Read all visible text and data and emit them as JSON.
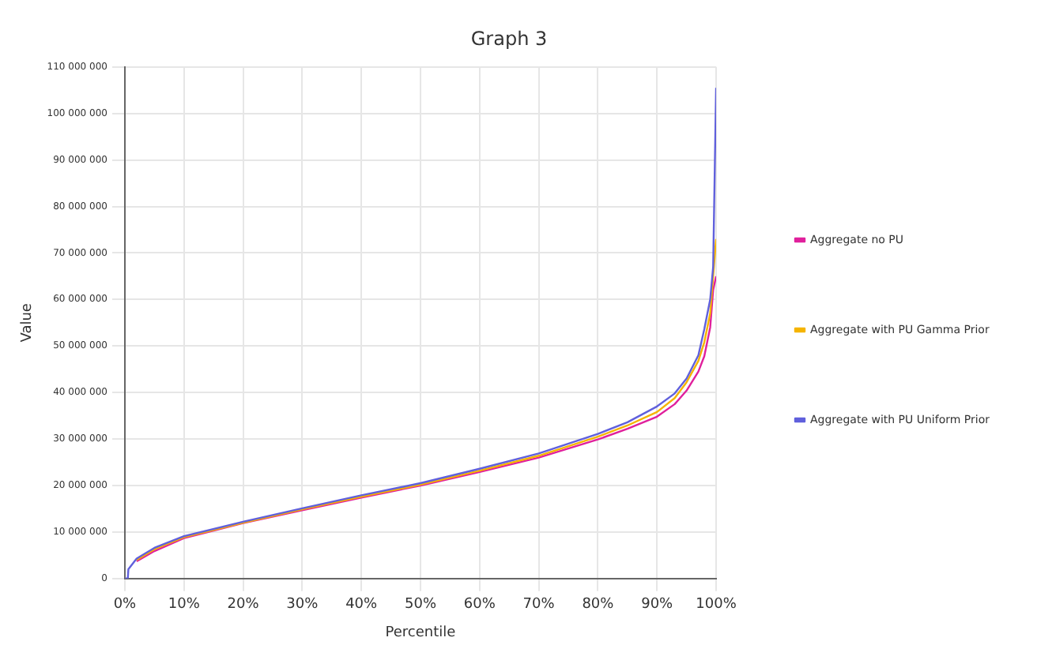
{
  "chart_data": {
    "type": "line",
    "title": "Graph 3",
    "xlabel": "Percentile",
    "ylabel": "Value",
    "xlim": [
      0,
      100
    ],
    "xticks": [
      {
        "value": 0,
        "label": "0%"
      },
      {
        "value": 10,
        "label": "10%"
      },
      {
        "value": 20,
        "label": "20%"
      },
      {
        "value": 30,
        "label": "30%"
      },
      {
        "value": 40,
        "label": "40%"
      },
      {
        "value": 50,
        "label": "50%"
      },
      {
        "value": 60,
        "label": "60%"
      },
      {
        "value": 70,
        "label": "70%"
      },
      {
        "value": 80,
        "label": "80%"
      },
      {
        "value": 90,
        "label": "90%"
      },
      {
        "value": 100,
        "label": "100%"
      }
    ],
    "ylim": [
      0,
      110000000
    ],
    "yticks": [
      {
        "value": 0,
        "label": "0"
      },
      {
        "value": 10000000,
        "label": "10 000 000"
      },
      {
        "value": 20000000,
        "label": "20 000 000"
      },
      {
        "value": 30000000,
        "label": "30 000 000"
      },
      {
        "value": 40000000,
        "label": "40 000 000"
      },
      {
        "value": 50000000,
        "label": "50 000 000"
      },
      {
        "value": 60000000,
        "label": "60 000 000"
      },
      {
        "value": 70000000,
        "label": "70 000 000"
      },
      {
        "value": 80000000,
        "label": "80 000 000"
      },
      {
        "value": 90000000,
        "label": "90 000 000"
      },
      {
        "value": 100000000,
        "label": "100 000 000"
      },
      {
        "value": 110000000,
        "label": "110 000 000"
      }
    ],
    "x": [
      0,
      0.5,
      0.6,
      2,
      5,
      10,
      20,
      30,
      40,
      50,
      60,
      70,
      80,
      85,
      90,
      93,
      95,
      97,
      98,
      99,
      99.5,
      100
    ],
    "grid": true,
    "legend": "right",
    "marker": "none",
    "line_style": "solid",
    "series": [
      {
        "name": "Aggregate no PU",
        "color": "#e0209c",
        "values": [
          null,
          null,
          null,
          3700000,
          5900000,
          8700000,
          11900000,
          14700000,
          17400000,
          20000000,
          22900000,
          26000000,
          29900000,
          32200000,
          34800000,
          37500000,
          40400000,
          44500000,
          47800000,
          54000000,
          62000000,
          65000000
        ]
      },
      {
        "name": "Aggregate with PU Gamma Prior",
        "color": "#f5b400",
        "values": [
          null,
          null,
          null,
          4000000,
          6300000,
          8900000,
          12000000,
          14900000,
          17600000,
          20200000,
          23200000,
          26400000,
          30500000,
          32900000,
          35800000,
          38800000,
          42200000,
          46800000,
          50800000,
          57000000,
          65000000,
          73000000
        ]
      },
      {
        "name": "Aggregate with PU Uniform Prior",
        "color": "#6060dc",
        "values": [
          0,
          0,
          2000000,
          4300000,
          6600000,
          9100000,
          12200000,
          15100000,
          17900000,
          20500000,
          23600000,
          26900000,
          31100000,
          33600000,
          37000000,
          39800000,
          43000000,
          48000000,
          53600000,
          60000000,
          67000000,
          105500000
        ]
      }
    ]
  }
}
